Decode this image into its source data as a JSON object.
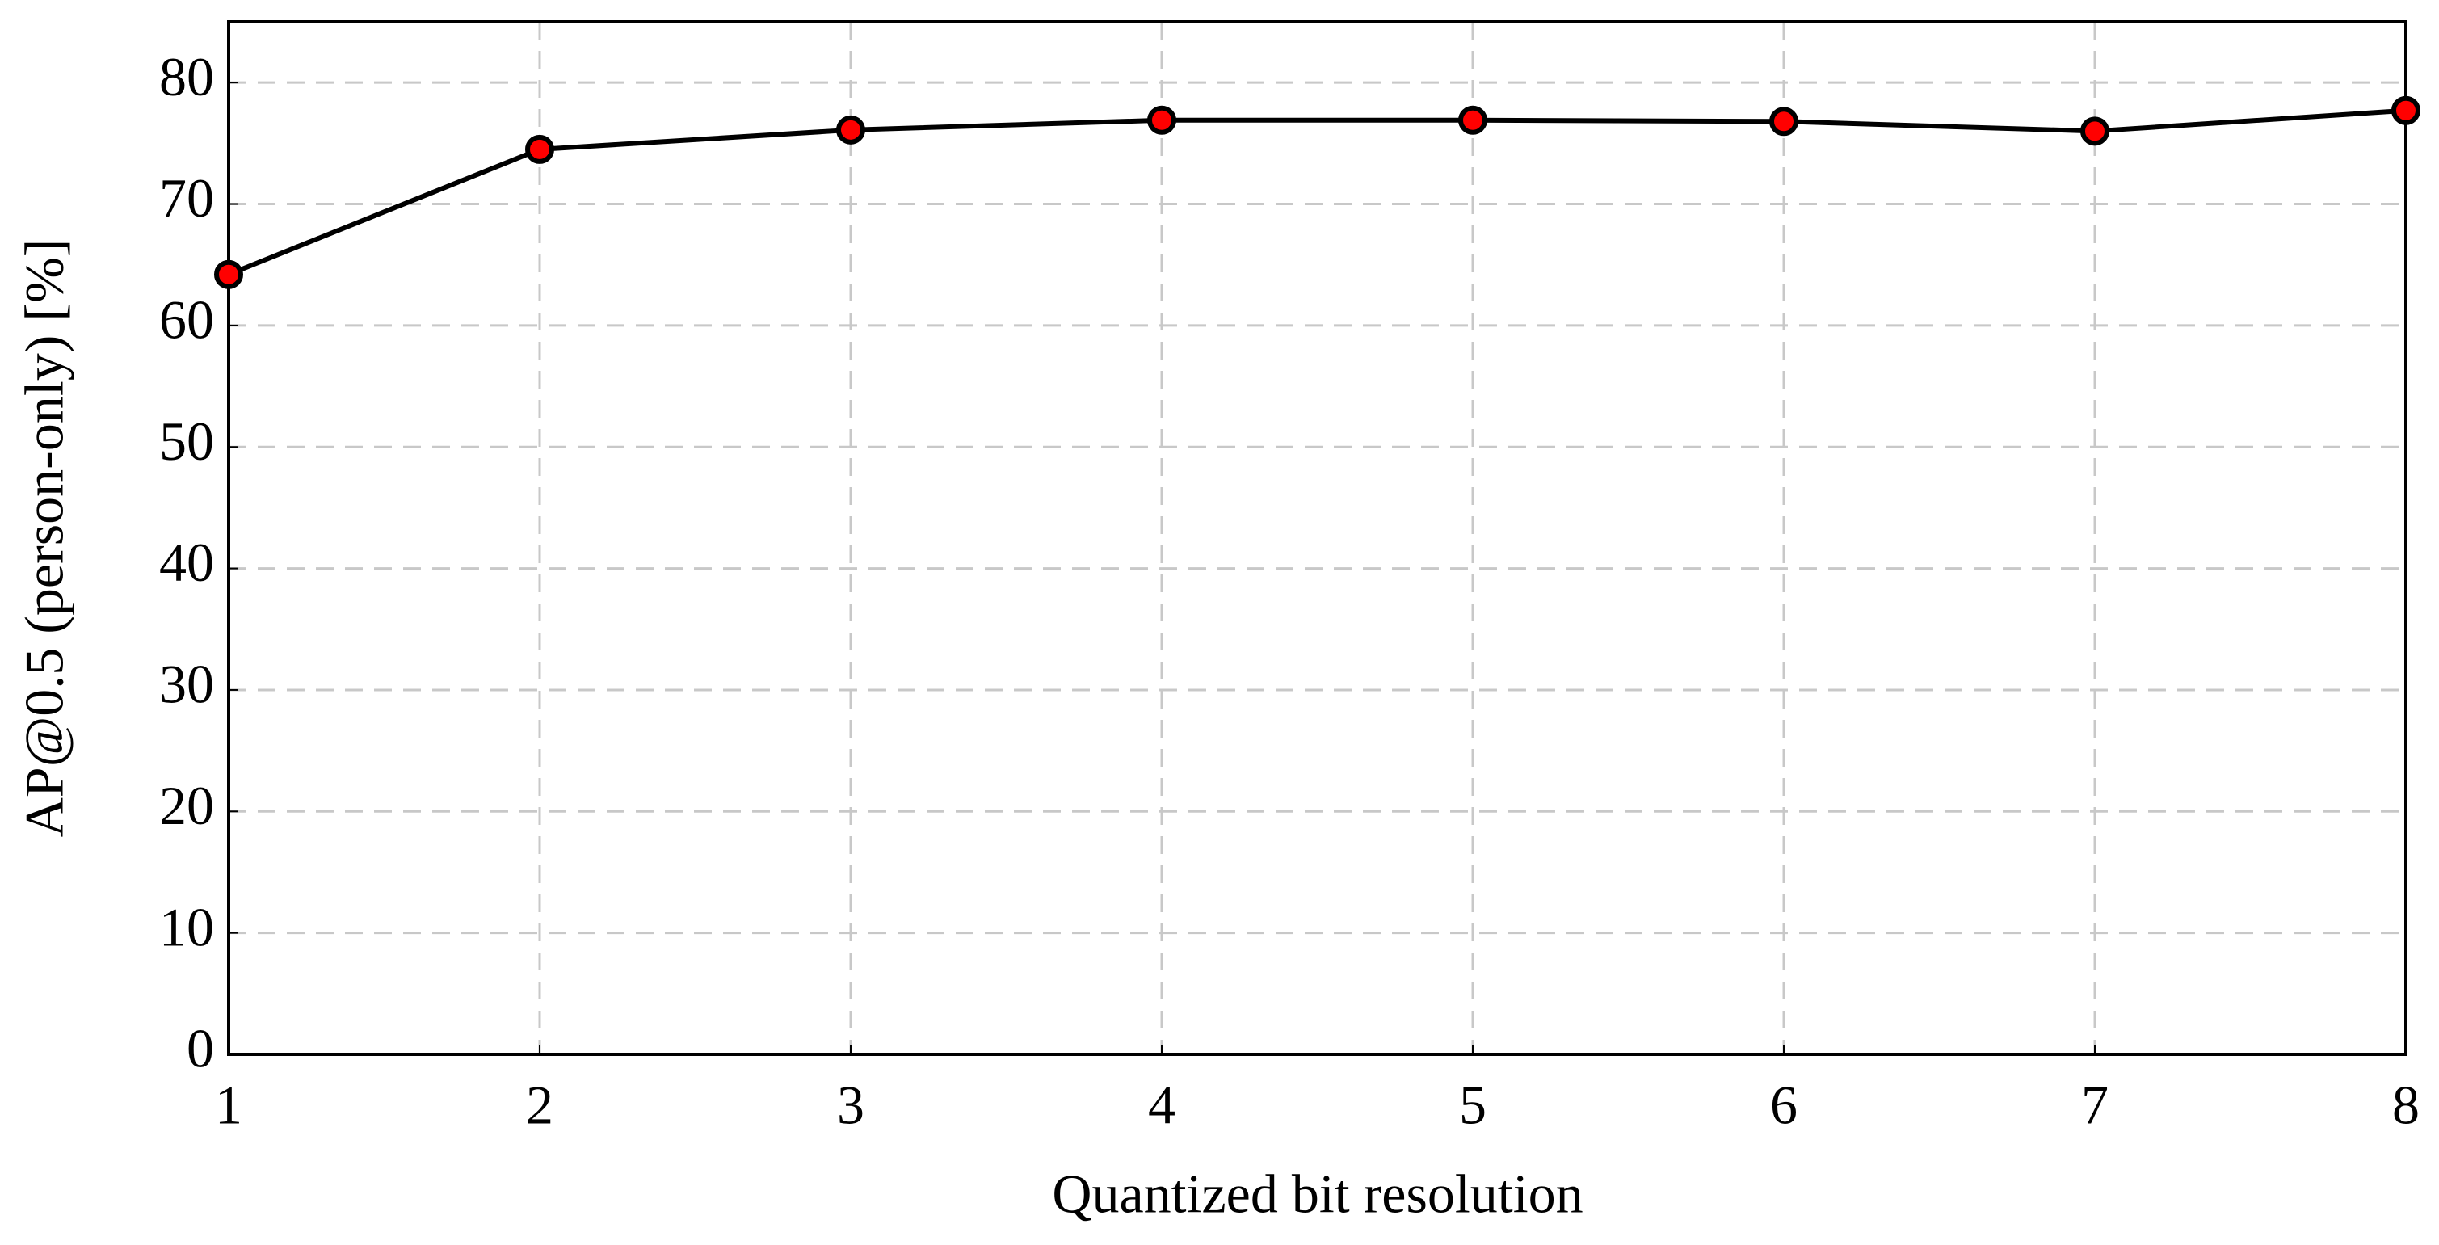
{
  "chart_data": {
    "type": "line",
    "x_label": "Quantized bit resolution",
    "y_label": "AP@0.5 (person-only) [%]",
    "x": [
      1,
      2,
      3,
      4,
      5,
      6,
      7,
      8
    ],
    "series": [
      {
        "name": "AP@0.5",
        "color": "#ff0000",
        "values": [
          64.2,
          74.5,
          76.1,
          76.9,
          76.9,
          76.8,
          76.0,
          77.7
        ]
      }
    ],
    "xlim": [
      1,
      8
    ],
    "xticks": [
      1,
      2,
      3,
      4,
      5,
      6,
      7,
      8
    ],
    "ylim": [
      0,
      85
    ],
    "yticks": [
      0,
      10,
      20,
      30,
      40,
      50,
      60,
      70,
      80
    ],
    "grid": true
  }
}
